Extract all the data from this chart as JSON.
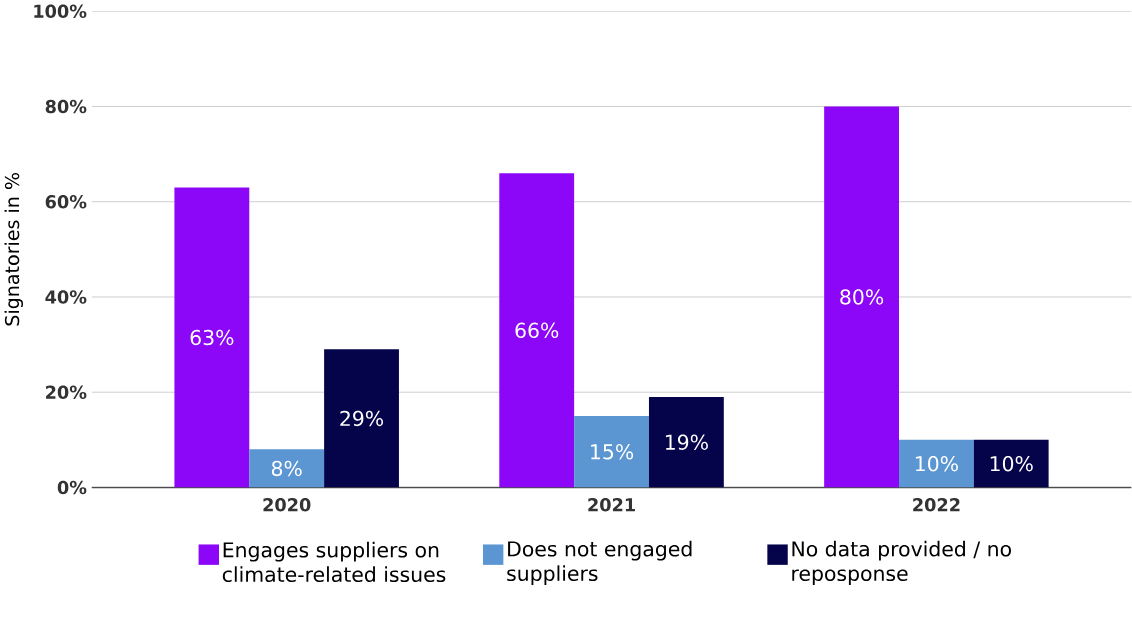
{
  "chart_data": {
    "type": "bar",
    "ylabel": "Signatories in %",
    "categories": [
      "2020",
      "2021",
      "2022"
    ],
    "series": [
      {
        "name": "Engages suppliers on climate-related issues",
        "color": "#8c07f7",
        "values": [
          63,
          66,
          80
        ],
        "value_labels": [
          "63%",
          "66%",
          "80%"
        ]
      },
      {
        "name": "Does not engaged suppliers",
        "color": "#5b96d2",
        "values": [
          8,
          15,
          10
        ],
        "value_labels": [
          "8%",
          "15%",
          "10%"
        ]
      },
      {
        "name": "No data provided / no reposponse",
        "color": "#05034a",
        "values": [
          29,
          19,
          10
        ],
        "value_labels": [
          "29%",
          "19%",
          "10%"
        ]
      }
    ],
    "ylim": [
      0,
      100
    ],
    "yticks": [
      {
        "value": 0,
        "label": "0%"
      },
      {
        "value": 20,
        "label": "20%"
      },
      {
        "value": 40,
        "label": "40%"
      },
      {
        "value": 60,
        "label": "60%"
      },
      {
        "value": 80,
        "label": "80%"
      },
      {
        "value": 100,
        "label": "100%"
      }
    ],
    "grid": "y",
    "legend": "bottom"
  }
}
